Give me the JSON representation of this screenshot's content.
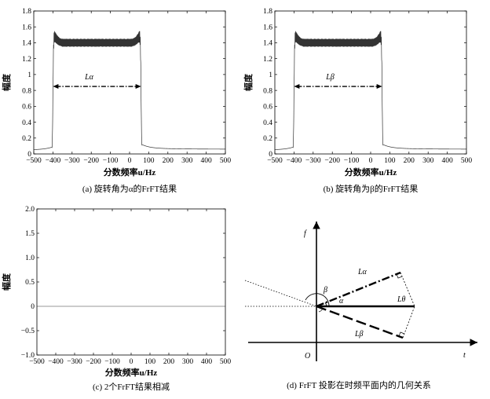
{
  "figure": {
    "panels": [
      {
        "id": "a",
        "caption": "(a) 旋转角为α的FrFT结果",
        "xlabel": "分数频率u/Hz",
        "ylabel": "幅度",
        "span_label": "Lα"
      },
      {
        "id": "b",
        "caption": "(b) 旋转角为β的FrFT结果",
        "xlabel": "分数频率u/Hz",
        "ylabel": "幅度",
        "span_label": "Lβ"
      },
      {
        "id": "c",
        "caption": "(c) 2个FrFT结果相减",
        "xlabel": "分数频率u/Hz",
        "ylabel": "幅度"
      },
      {
        "id": "d",
        "caption": "(d) FrFT 投影在时频平面内的几何关系"
      }
    ],
    "geometry_labels": {
      "f_axis": "f",
      "t_axis": "t",
      "origin": "O",
      "beta": "β",
      "alpha": "α",
      "L_alpha": "Lα",
      "L_theta": "Lθ",
      "L_beta": "Lβ"
    }
  },
  "chart_data": [
    {
      "type": "line",
      "panel": "a",
      "xlabel": "分数频率u/Hz",
      "ylabel": "幅度",
      "xlim": [
        -500,
        500
      ],
      "ylim": [
        0,
        1.8
      ],
      "xticks": [
        -500,
        -400,
        -300,
        -200,
        -100,
        0,
        100,
        200,
        300,
        400,
        500
      ],
      "yticks": [
        0,
        0.2,
        0.4,
        0.6,
        0.8,
        1,
        1.2,
        1.4,
        1.6,
        1.8
      ],
      "ytick_labels": [
        "0",
        "0.2",
        "0.4",
        "0.6",
        "0.8",
        "1",
        "1.2",
        "1.4",
        "1.6",
        "1.8"
      ],
      "band": {
        "start": -400,
        "end": 60,
        "level": 1.4,
        "ripple": 0.05,
        "edge_peak": 1.65
      },
      "annotation": {
        "text": "Lα",
        "from": -400,
        "to": 60,
        "y": 0.85
      },
      "color": "#333333"
    },
    {
      "type": "line",
      "panel": "b",
      "xlabel": "分数频率u/Hz",
      "ylabel": "幅度",
      "xlim": [
        -500,
        500
      ],
      "ylim": [
        0,
        1.8
      ],
      "xticks": [
        -500,
        -400,
        -300,
        -200,
        -100,
        0,
        100,
        200,
        300,
        400,
        500
      ],
      "yticks": [
        0,
        0.2,
        0.4,
        0.6,
        0.8,
        1,
        1.2,
        1.4,
        1.6,
        1.8
      ],
      "ytick_labels": [
        "0",
        "0.2",
        "0.4",
        "0.6",
        "0.8",
        "1",
        "1.2",
        "1.4",
        "1.6",
        "1.8"
      ],
      "band": {
        "start": -400,
        "end": 60,
        "level": 1.4,
        "ripple": 0.05,
        "edge_peak": 1.65
      },
      "annotation": {
        "text": "Lβ",
        "from": -400,
        "to": 60,
        "y": 0.85
      },
      "color": "#333333"
    },
    {
      "type": "line",
      "panel": "c",
      "xlabel": "分数频率u/Hz",
      "ylabel": "幅度",
      "xlim": [
        -500,
        500
      ],
      "ylim": [
        -1.0,
        2.0
      ],
      "xticks": [
        -500,
        -400,
        -300,
        -200,
        -100,
        0,
        100,
        200,
        300,
        400,
        500
      ],
      "yticks": [
        -1.0,
        -0.5,
        0,
        0.5,
        1.0,
        1.5,
        2.0
      ],
      "ytick_labels": [
        "−1.0",
        "−0.5",
        "0",
        "0.5",
        "1.0",
        "1.5",
        "2.0"
      ],
      "x": [
        -500,
        500
      ],
      "y": [
        0,
        0
      ],
      "color": "#999999"
    }
  ]
}
